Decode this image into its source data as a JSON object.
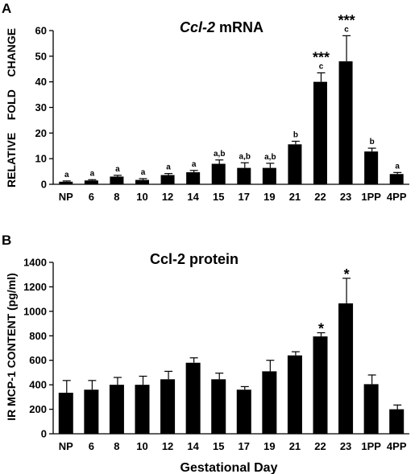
{
  "chart_data": [
    {
      "type": "bar",
      "panel": "A",
      "title_italic": "Ccl-2",
      "title_rest": " mRNA",
      "ylabel": "RELATIVE    FOLD    CHANGE",
      "xlabel": "",
      "categories": [
        "NP",
        "6",
        "8",
        "10",
        "12",
        "14",
        "15",
        "17",
        "19",
        "21",
        "22",
        "23",
        "1PP",
        "4PP"
      ],
      "values": [
        1,
        1.5,
        3,
        1.7,
        3.6,
        4.7,
        8,
        6.4,
        6.4,
        15.6,
        40,
        48,
        12.8,
        4
      ],
      "errors": [
        0.3,
        0.3,
        0.5,
        0.5,
        0.6,
        0.7,
        1.5,
        2,
        1.8,
        1.2,
        3.5,
        10,
        1.3,
        0.6
      ],
      "letters": [
        "a",
        "a",
        "a",
        "a",
        "a",
        "a",
        "a,b",
        "a,b",
        "a,b",
        "b",
        "c",
        "c",
        "b",
        "a"
      ],
      "significance": [
        "",
        "",
        "",
        "",
        "",
        "",
        "",
        "",
        "",
        "",
        "***",
        "***",
        "",
        ""
      ],
      "ylim": [
        0,
        60
      ],
      "yticks": [
        0,
        10,
        20,
        30,
        40,
        50,
        60
      ]
    },
    {
      "type": "bar",
      "panel": "B",
      "title": "Ccl-2 protein",
      "ylabel": "IR MCP-1 CONTENT (pg/ml)",
      "xlabel": "Gestational Day",
      "categories": [
        "NP",
        "6",
        "8",
        "10",
        "12",
        "14",
        "15",
        "17",
        "19",
        "21",
        "22",
        "23",
        "1PP",
        "4PP"
      ],
      "values": [
        335,
        360,
        400,
        400,
        445,
        580,
        445,
        360,
        510,
        640,
        795,
        1065,
        405,
        200
      ],
      "errors": [
        100,
        75,
        60,
        70,
        65,
        40,
        50,
        25,
        90,
        30,
        30,
        205,
        75,
        35
      ],
      "significance": [
        "",
        "",
        "",
        "",
        "",
        "",
        "",
        "",
        "",
        "",
        "*",
        "*",
        "",
        ""
      ],
      "ylim": [
        0,
        1400
      ],
      "yticks": [
        0,
        200,
        400,
        600,
        800,
        1000,
        1200,
        1400
      ]
    }
  ]
}
